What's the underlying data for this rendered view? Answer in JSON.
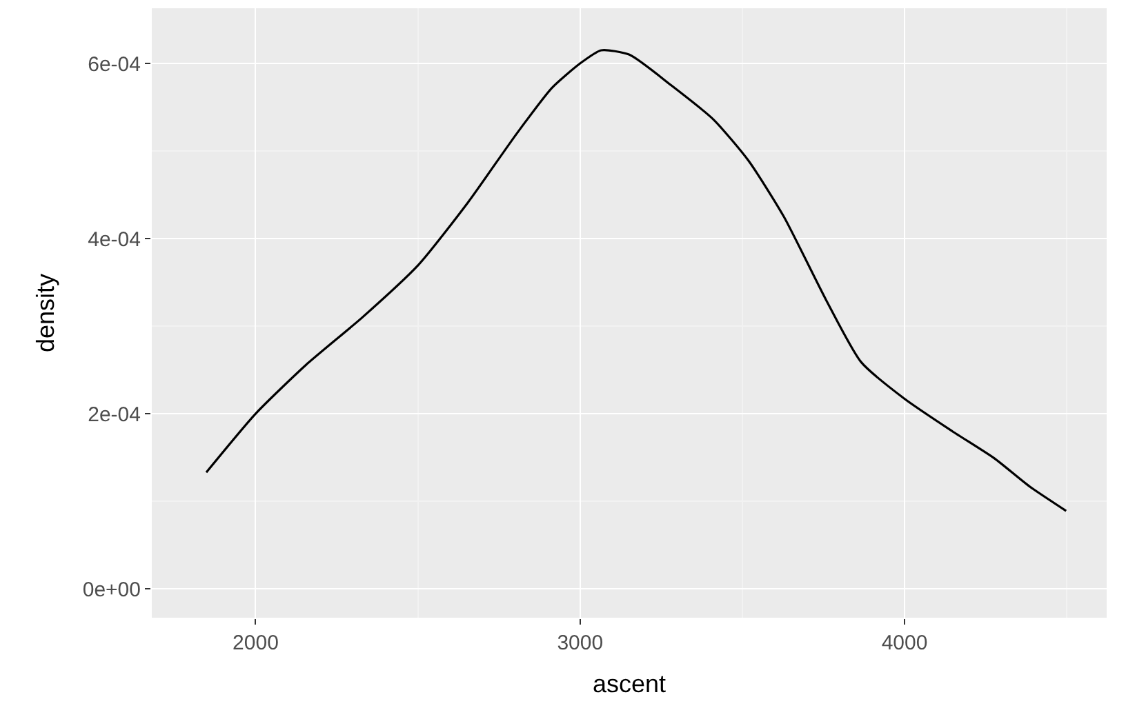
{
  "chart_data": {
    "type": "line",
    "xlabel": "ascent",
    "ylabel": "density",
    "x": [
      1848,
      2000,
      2156,
      2329,
      2502,
      2654,
      2805,
      2913,
      3000,
      3065,
      3152,
      3281,
      3411,
      3519,
      3628,
      3758,
      3866,
      4000,
      4147,
      4277,
      4385,
      4498
    ],
    "series": [
      {
        "color": "#000000",
        "values": [
          0.000133,
          0.0002,
          0.000256,
          0.00031,
          0.00037,
          0.000441,
          0.00052,
          0.000572,
          0.0006,
          0.000615,
          0.00061,
          0.000575,
          0.000536,
          0.000489,
          0.000425,
          0.00033,
          0.000259,
          0.000217,
          0.00018,
          0.000149,
          0.000117,
          8.9e-05
        ]
      }
    ],
    "xlim": [
      1680,
      4623
    ],
    "ylim": [
      -3.3e-05,
      0.000663
    ],
    "xticks": [
      2000,
      3000,
      4000
    ],
    "yticks": [
      {
        "value": 0,
        "label": "0e+00"
      },
      {
        "value": 0.0002,
        "label": "2e-04"
      },
      {
        "value": 0.0004,
        "label": "4e-04"
      },
      {
        "value": 0.0006,
        "label": "6e-04"
      }
    ],
    "grid": true,
    "legend": false,
    "marker": "none",
    "line_style": "solid"
  }
}
